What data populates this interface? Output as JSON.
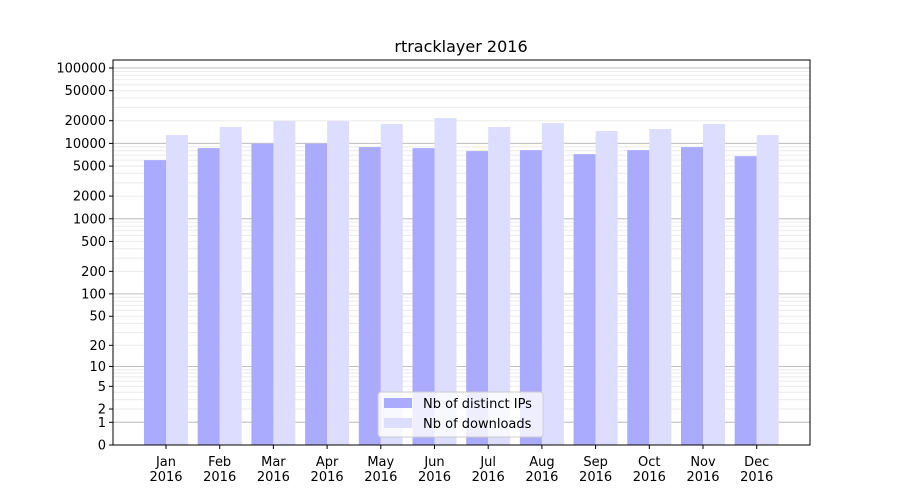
{
  "chart_data": {
    "type": "bar",
    "title": "rtracklayer 2016",
    "xlabel": "",
    "ylabel": "",
    "yscale": "log(1+y)",
    "ylim": [
      0,
      127000
    ],
    "grid": true,
    "legend_placement": "bottom-center",
    "categories": [
      "Jan\n2016",
      "Feb\n2016",
      "Mar\n2016",
      "Apr\n2016",
      "May\n2016",
      "Jun\n2016",
      "Jul\n2016",
      "Aug\n2016",
      "Sep\n2016",
      "Oct\n2016",
      "Nov\n2016",
      "Dec\n2016"
    ],
    "yticks": [
      0,
      1,
      2,
      5,
      10,
      20,
      50,
      100,
      200,
      500,
      1000,
      2000,
      5000,
      10000,
      20000,
      50000,
      100000
    ],
    "major_grid": [
      1,
      10,
      100,
      1000,
      10000,
      100000
    ],
    "series": [
      {
        "name": "Nb of distinct IPs",
        "color": "#aaaaff",
        "values": [
          6000,
          8650,
          9900,
          9900,
          8930,
          8650,
          7900,
          8140,
          7200,
          8140,
          8930,
          6770
        ]
      },
      {
        "name": "Nb of downloads",
        "color": "#ddddff",
        "values": [
          12900,
          16500,
          19800,
          19800,
          18100,
          21700,
          16500,
          18650,
          14600,
          15500,
          18100,
          12900
        ]
      }
    ]
  }
}
